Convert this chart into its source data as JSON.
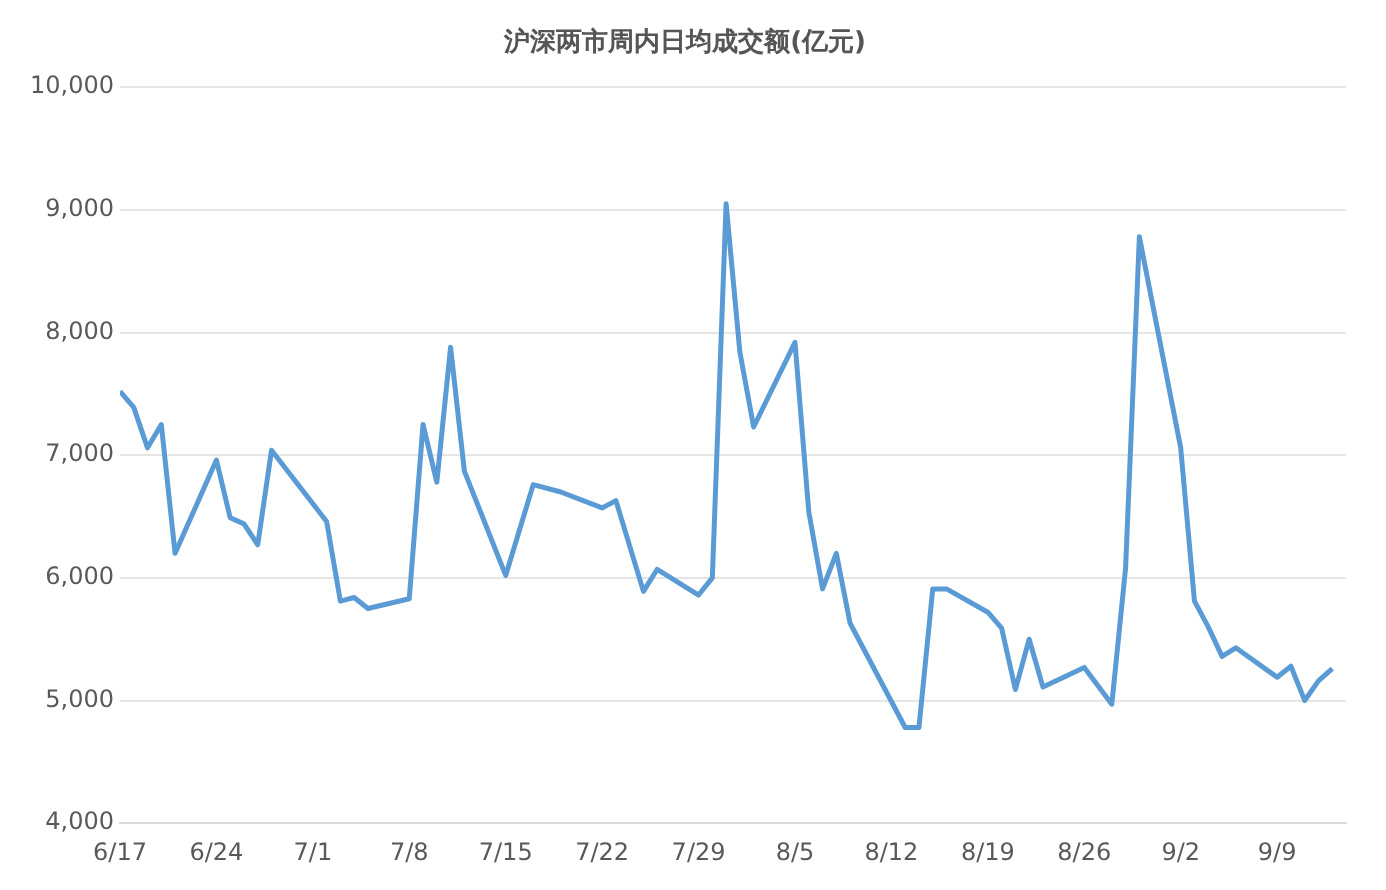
{
  "chart_data": {
    "type": "line",
    "title": "沪深两市周内日均成交额(亿元)",
    "x": [
      "--06-17",
      "--06-18",
      "--06-19",
      "--06-20",
      "--06-21",
      "--06-24",
      "--06-25",
      "--06-26",
      "--06-27",
      "--06-28",
      "--07-02",
      "--07-03",
      "--07-04",
      "--07-05",
      "--07-08",
      "--07-09",
      "--07-10",
      "--07-11",
      "--07-12",
      "--07-15",
      "--07-17",
      "--07-19",
      "--07-22",
      "--07-23",
      "--07-25",
      "--07-26",
      "--07-29",
      "--07-30",
      "--07-31",
      "--08-01",
      "--08-02",
      "--08-05",
      "--08-06",
      "--08-07",
      "--08-08",
      "--08-09",
      "--08-13",
      "--08-14",
      "--08-15",
      "--08-16",
      "--08-19",
      "--08-20",
      "--08-21",
      "--08-22",
      "--08-23",
      "--08-26",
      "--08-28",
      "--08-29",
      "--08-30",
      "--09-02",
      "--09-03",
      "--09-04",
      "--09-05",
      "--09-06",
      "--09-09",
      "--09-10",
      "--09-11",
      "--09-12",
      "--09-13"
    ],
    "series": [
      {
        "color": "#5b9bd5",
        "values": [
          7520,
          7390,
          7060,
          7250,
          6200,
          6960,
          6490,
          6440,
          6270,
          7040,
          6460,
          5810,
          5840,
          5750,
          5830,
          7250,
          6780,
          7880,
          6870,
          6020,
          6760,
          6700,
          6570,
          6630,
          5890,
          6070,
          5860,
          6000,
          9050,
          7840,
          7230,
          7920,
          6540,
          5910,
          6200,
          5630,
          4780,
          4780,
          5910,
          5910,
          5720,
          5590,
          5090,
          5500,
          5110,
          5270,
          4970,
          6080,
          8780,
          7060,
          5810,
          5600,
          5360,
          5430,
          5190,
          5280,
          5000,
          5160,
          5260
        ]
      }
    ],
    "xlim": [
      "--06-17",
      "--09-14"
    ],
    "xticks": [
      {
        "value": "--06-17",
        "label": "6/17"
      },
      {
        "value": "--06-24",
        "label": "6/24"
      },
      {
        "value": "--07-01",
        "label": "7/1"
      },
      {
        "value": "--07-08",
        "label": "7/8"
      },
      {
        "value": "--07-15",
        "label": "7/15"
      },
      {
        "value": "--07-22",
        "label": "7/22"
      },
      {
        "value": "--07-29",
        "label": "7/29"
      },
      {
        "value": "--08-05",
        "label": "8/5"
      },
      {
        "value": "--08-12",
        "label": "8/12"
      },
      {
        "value": "--08-19",
        "label": "8/19"
      },
      {
        "value": "--08-26",
        "label": "8/26"
      },
      {
        "value": "--09-02",
        "label": "9/2"
      },
      {
        "value": "--09-09",
        "label": "9/9"
      }
    ],
    "ylim": [
      4000,
      10000
    ],
    "yticks": [
      {
        "value": 4000,
        "label": "4,000"
      },
      {
        "value": 5000,
        "label": "5,000"
      },
      {
        "value": 6000,
        "label": "6,000"
      },
      {
        "value": 7000,
        "label": "7,000"
      },
      {
        "value": 8000,
        "label": "8,000"
      },
      {
        "value": 9000,
        "label": "9,000"
      },
      {
        "value": 10000,
        "label": "10,000"
      }
    ],
    "grid": "y",
    "marker": "none",
    "line_style": "solid",
    "legend": false
  }
}
